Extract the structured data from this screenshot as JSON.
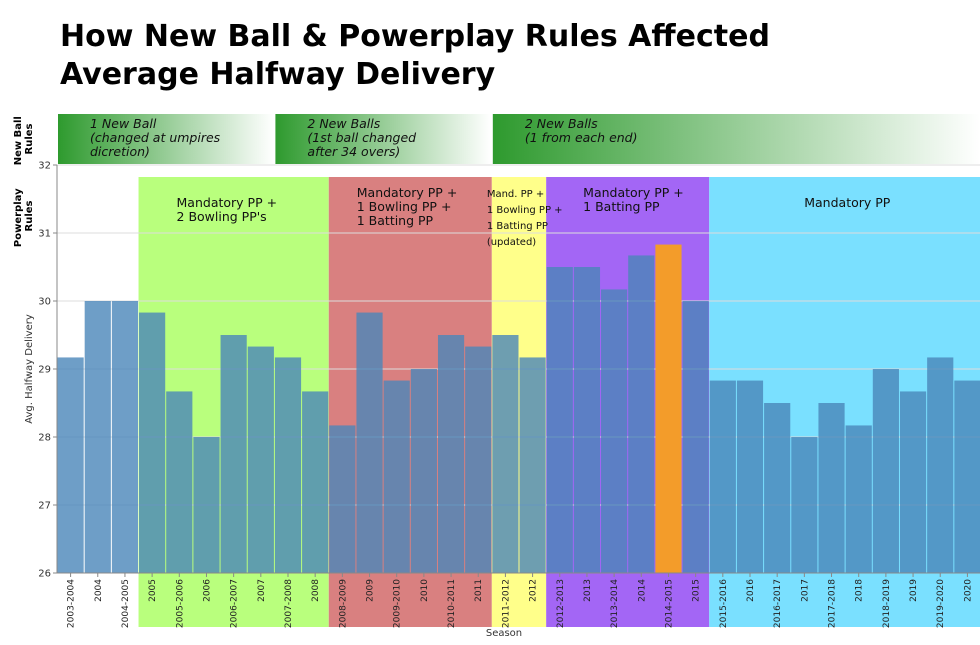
{
  "chart_data": {
    "type": "bar",
    "title_lines": [
      "How New Ball & Powerplay Rules Affected",
      "Average Halfway Delivery"
    ],
    "xlabel": "Season",
    "ylabel": "Avg. Halfway Delivery",
    "ylim": [
      26,
      32
    ],
    "yticks": [
      26,
      27,
      28,
      29,
      30,
      31,
      32
    ],
    "grid": true,
    "categories": [
      "2003-2004",
      "2004",
      "2004-2005",
      "2005",
      "2005-2006",
      "2006",
      "2006-2007",
      "2007",
      "2007-2008",
      "2008",
      "2008-2009",
      "2009",
      "2009-2010",
      "2010",
      "2010-2011",
      "2011",
      "2011-2012",
      "2012",
      "2012-2013",
      "2013",
      "2013-2014",
      "2014",
      "2014-2015",
      "2015",
      "2015-2016",
      "2016",
      "2016-2017",
      "2017",
      "2017-2018",
      "2018",
      "2018-2019",
      "2019",
      "2019-2020",
      "2020"
    ],
    "values": [
      29.17,
      30.0,
      30.0,
      29.83,
      28.67,
      28.0,
      29.5,
      29.33,
      29.17,
      28.67,
      28.17,
      29.83,
      28.83,
      29.0,
      29.5,
      29.33,
      29.5,
      29.17,
      30.5,
      30.5,
      30.17,
      30.67,
      30.83,
      30.0,
      28.83,
      28.83,
      28.5,
      28.0,
      28.5,
      28.17,
      29.0,
      28.67,
      29.17,
      28.83
    ],
    "bar_color": "#4a86b9",
    "highlight_index": 22,
    "highlight_color": "#f39c2a",
    "new_ball_rules": {
      "row_label": [
        "New Ball",
        "Rules"
      ],
      "bands": [
        {
          "lines": [
            "1 New Ball",
            "(changed at umpires",
            "dicretion)"
          ],
          "first": 0,
          "last": 7
        },
        {
          "lines": [
            "2 New Balls",
            "(1st ball changed",
            "after 34 overs)"
          ],
          "first": 8,
          "last": 15
        },
        {
          "lines": [
            "2 New Balls",
            "(1 from each end)"
          ],
          "first": 16,
          "last": 33
        }
      ],
      "color": "#2e9a2e"
    },
    "powerplay_rules": {
      "row_label": [
        "Powerplay",
        "Rules"
      ],
      "bands": [
        {
          "lines": [
            "Mandatory PP +",
            "2 Bowling PP's"
          ],
          "first": 3,
          "last": 9,
          "color": "#b9ff7d"
        },
        {
          "lines": [
            "Mandatory PP +",
            "1 Bowling PP +",
            "1 Batting PP"
          ],
          "first": 10,
          "last": 15,
          "color": "#d98080"
        },
        {
          "lines": [
            "Mand. PP +",
            "1 Bowling PP +",
            "1 Batting PP",
            "(updated)"
          ],
          "first": 16,
          "last": 17,
          "color": "#ffff8a"
        },
        {
          "lines": [
            "Mandatory PP +",
            "1 Batting PP"
          ],
          "first": 18,
          "last": 23,
          "color": "#a366f5"
        },
        {
          "lines": [
            "Mandatory PP"
          ],
          "first": 24,
          "last": 33,
          "color": "#7ae0ff"
        }
      ]
    }
  }
}
